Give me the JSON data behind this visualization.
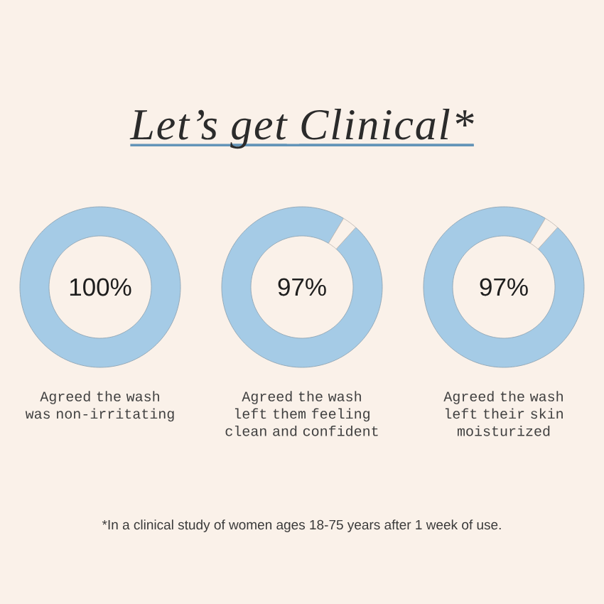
{
  "chart_data": [
    {
      "type": "other",
      "title": "Let’s get Clinical*",
      "annotations": [
        "*In a clinical study of women ages 18-75 years after 1 week of use."
      ]
    },
    {
      "type": "donut",
      "categories": [
        null
      ],
      "values": [
        100
      ],
      "colors": [
        "#a5cbe6"
      ],
      "value_labels": [
        "100%"
      ],
      "annotations": [
        "Agreed the wash was non-irritating"
      ]
    },
    {
      "type": "donut",
      "categories": [
        null,
        null
      ],
      "values": [
        97,
        3
      ],
      "colors": [
        "#a5cbe6",
        "#faf1e9"
      ],
      "value_labels": [
        "97%",
        null
      ],
      "annotations": [
        "Agreed the wash left them feeling clean and confident"
      ]
    },
    {
      "type": "donut",
      "categories": [
        null,
        null
      ],
      "values": [
        97,
        3
      ],
      "colors": [
        "#a5cbe6",
        "#faf1e9"
      ],
      "value_labels": [
        "97%",
        null
      ],
      "annotations": [
        "Agreed the wash left their skin moisturized"
      ]
    }
  ]
}
